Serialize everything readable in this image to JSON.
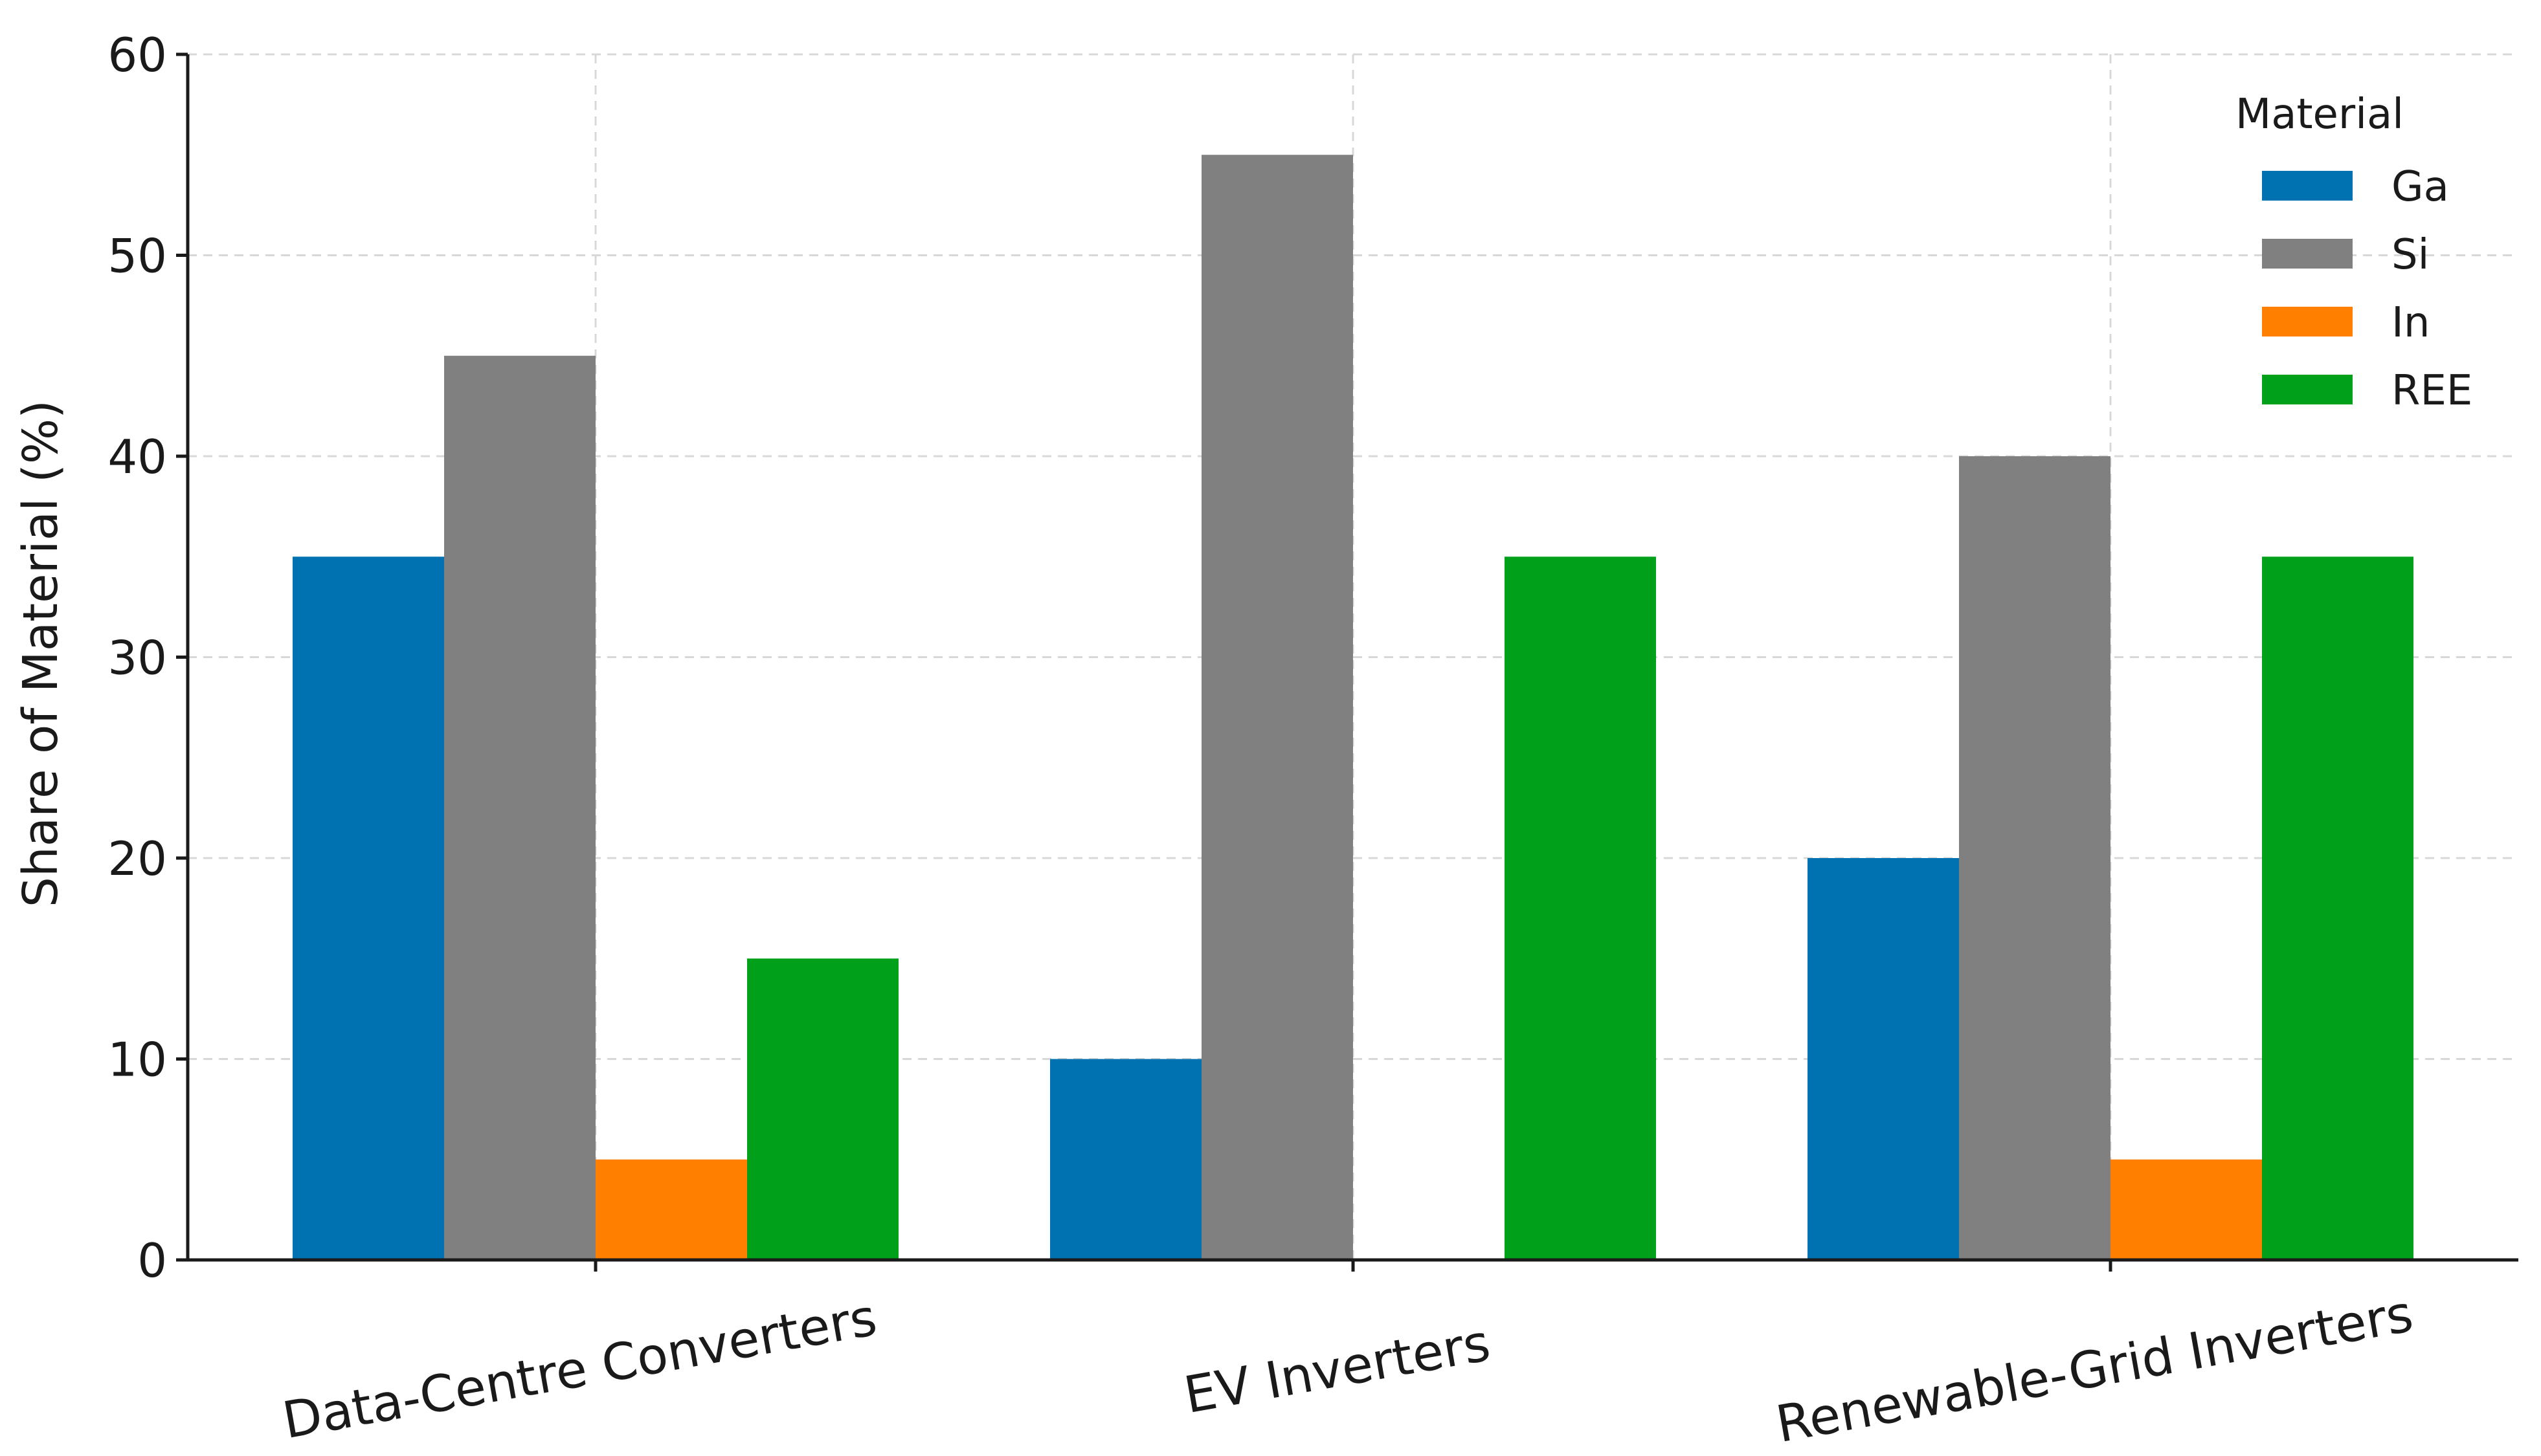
{
  "chart_data": {
    "type": "bar",
    "title": "",
    "xlabel": "",
    "ylabel": "Share of Material (%)",
    "ylim": [
      0,
      60
    ],
    "yticks": [
      0,
      10,
      20,
      30,
      40,
      50,
      60
    ],
    "grid": true,
    "categories": [
      "Data-Centre Converters",
      "EV Inverters",
      "Renewable-Grid Inverters"
    ],
    "series": [
      {
        "name": "Ga",
        "color": "#0072B2",
        "values": [
          35,
          10,
          20
        ]
      },
      {
        "name": "Si",
        "color": "#808080",
        "values": [
          45,
          55,
          40
        ]
      },
      {
        "name": "In",
        "color": "#FF7F00",
        "values": [
          5,
          0,
          5
        ]
      },
      {
        "name": "REE",
        "color": "#00A01A",
        "values": [
          15,
          35,
          35
        ]
      }
    ],
    "legend": {
      "title": "Material",
      "placement": "top-right"
    }
  }
}
